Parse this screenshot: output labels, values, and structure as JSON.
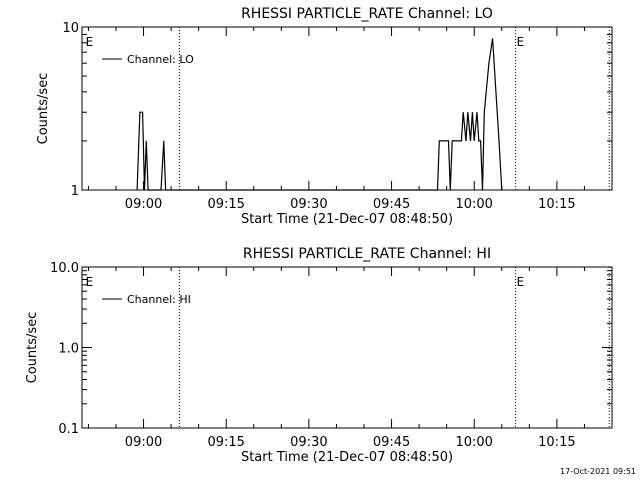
{
  "chart_data": [
    {
      "type": "line",
      "title": "RHESSI PARTICLE_RATE Channel: LO",
      "xlabel": "Start Time (21-Dec-07 08:48:50)",
      "ylabel": "Counts/sec",
      "yscale": "log",
      "ylim": [
        1,
        10
      ],
      "xlim": [
        "08:48:50",
        "10:25:00"
      ],
      "y_tick_labels": [
        "1",
        "10"
      ],
      "x_ticks": [
        "09:00",
        "09:15",
        "09:30",
        "09:45",
        "10:00",
        "10:15"
      ],
      "vlines": [
        "09:06:30",
        "10:07:30",
        "10:24:30"
      ],
      "markers": [
        {
          "label": "E",
          "x": "08:49:30"
        },
        {
          "label": "E",
          "x": "10:07:40"
        }
      ],
      "legend": "top-left",
      "series": [
        {
          "name": "Channel: LO",
          "points": [
            [
              "08:58:50",
              1
            ],
            [
              "08:59:20",
              3
            ],
            [
              "08:59:50",
              3
            ],
            [
              "09:00:10",
              1
            ],
            [
              "09:00:30",
              2
            ],
            [
              "09:00:50",
              1
            ],
            [
              "09:03:10",
              1
            ],
            [
              "09:03:40",
              2
            ],
            [
              "09:04:00",
              1
            ],
            [
              "09:53:20",
              1
            ],
            [
              "09:53:40",
              2
            ],
            [
              "09:55:20",
              2
            ],
            [
              "09:55:40",
              1
            ],
            [
              "09:56:00",
              2
            ],
            [
              "09:57:40",
              2
            ],
            [
              "09:58:00",
              3
            ],
            [
              "09:58:30",
              2
            ],
            [
              "09:58:50",
              3
            ],
            [
              "09:59:20",
              2
            ],
            [
              "09:59:40",
              3
            ],
            [
              "10:00:00",
              2
            ],
            [
              "10:00:30",
              3
            ],
            [
              "10:00:50",
              2
            ],
            [
              "10:01:10",
              2
            ],
            [
              "10:01:30",
              1
            ],
            [
              "10:01:50",
              3
            ],
            [
              "10:02:40",
              6
            ],
            [
              "10:03:20",
              8.5
            ],
            [
              "10:04:30",
              2
            ],
            [
              "10:05:00",
              1
            ]
          ]
        }
      ]
    },
    {
      "type": "line",
      "title": "RHESSI PARTICLE_RATE Channel: HI",
      "xlabel": "Start Time (21-Dec-07 08:48:50)",
      "ylabel": "Counts/sec",
      "yscale": "log",
      "ylim": [
        0.1,
        10
      ],
      "xlim": [
        "08:48:50",
        "10:25:00"
      ],
      "y_tick_labels": [
        "0.1",
        "1.0",
        "10.0"
      ],
      "x_ticks": [
        "09:00",
        "09:15",
        "09:30",
        "09:45",
        "10:00",
        "10:15"
      ],
      "vlines": [
        "09:06:30",
        "10:07:30",
        "10:24:30"
      ],
      "markers": [
        {
          "label": "E",
          "x": "08:49:30"
        },
        {
          "label": "E",
          "x": "10:07:40"
        }
      ],
      "legend": "top-left",
      "series": [
        {
          "name": "Channel: HI",
          "points": []
        }
      ]
    }
  ],
  "footer": {
    "timestamp": "17-Oct-2021 09:51"
  }
}
